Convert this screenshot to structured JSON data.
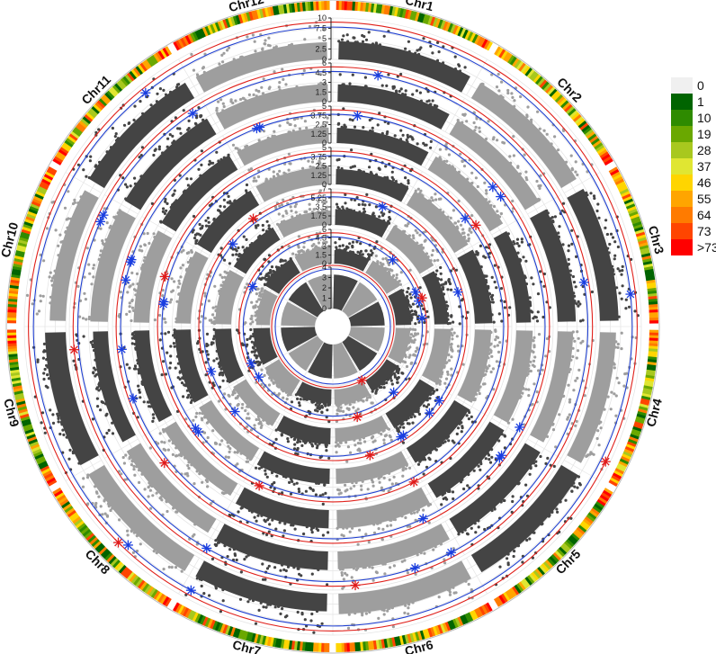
{
  "chart_data": {
    "type": "scatter",
    "subtype": "circular-manhattan",
    "chromosomes": [
      "Chr1",
      "Chr2",
      "Chr3",
      "Chr4",
      "Chr5",
      "Chr6",
      "Chr7",
      "Chr8",
      "Chr9",
      "Chr10",
      "Chr11",
      "Chr12"
    ],
    "tracks": [
      {
        "ticks": [
          "0",
          "2.5",
          "5",
          "7.5",
          "10"
        ],
        "ylim": [
          0,
          10
        ]
      },
      {
        "ticks": [
          "0",
          "1.5",
          "3",
          "4.5",
          "6"
        ],
        "ylim": [
          0,
          6
        ]
      },
      {
        "ticks": [
          "0",
          "1.25",
          "2.5",
          "3.75",
          "5"
        ],
        "ylim": [
          0,
          5
        ]
      },
      {
        "ticks": [
          "0",
          "1.25",
          "2.5",
          "3.75",
          "5"
        ],
        "ylim": [
          0,
          5
        ]
      },
      {
        "ticks": [
          "0",
          "1.75",
          "3.5",
          "5.25",
          "7"
        ],
        "ylim": [
          0,
          7
        ]
      },
      {
        "ticks": [
          "0",
          "1.5",
          "3",
          "4.5",
          "6"
        ],
        "ylim": [
          0,
          6
        ]
      },
      {
        "ticks": [
          "0",
          "1",
          "2",
          "3",
          "4"
        ],
        "ylim": [
          0,
          4
        ]
      }
    ],
    "density_legend": {
      "labels": [
        "0",
        "1",
        "10",
        "19",
        "28",
        "37",
        "46",
        "55",
        "64",
        "73",
        ">73"
      ],
      "colors": [
        "#f0f0f0",
        "#006400",
        "#2e8b00",
        "#6aa800",
        "#a8c81e",
        "#e0e632",
        "#ffd500",
        "#ffa500",
        "#ff7b00",
        "#ff4500",
        "#ff0000"
      ]
    },
    "significant_markers": {
      "blue_count": 48,
      "red_count": 14
    },
    "grid": true,
    "legend_position": "right"
  },
  "colors": {
    "dark_points": "#444444",
    "light_points": "#9e9e9e",
    "threshold_blue": "#1f3fd0",
    "threshold_red": "#e0201a",
    "marker_blue": "#1a3ee0",
    "marker_red": "#e01a1a"
  }
}
